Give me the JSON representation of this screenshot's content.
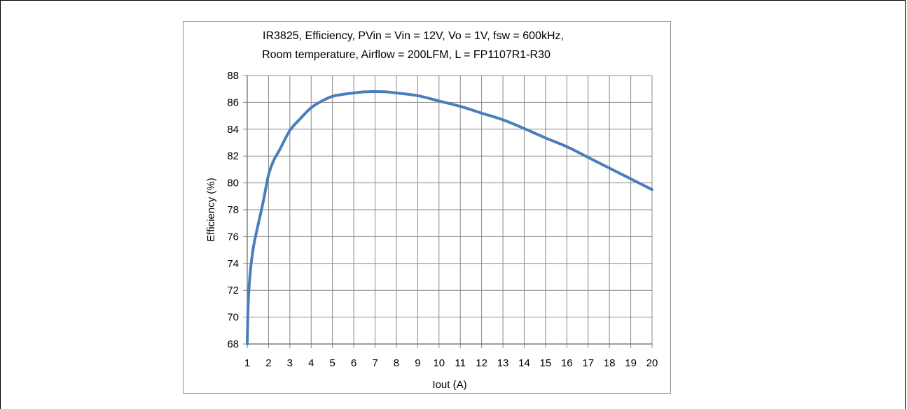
{
  "chart_data": {
    "type": "line",
    "title_lines": [
      "IR3825, Efficiency,  PVin = Vin = 12V, Vo = 1V, fsw = 600kHz,",
      "Room temperature, Airflow = 200LFM, L = FP1107R1-R30"
    ],
    "xlabel": "Iout (A)",
    "ylabel": "Efficiency  (%)",
    "xlim": [
      1,
      20
    ],
    "ylim": [
      68,
      88
    ],
    "xticks": [
      "1",
      "2",
      "3",
      "4",
      "5",
      "6",
      "7",
      "8",
      "9",
      "10",
      "11",
      "12",
      "13",
      "14",
      "15",
      "16",
      "17",
      "18",
      "19",
      "20"
    ],
    "yticks": [
      "68",
      "70",
      "72",
      "74",
      "76",
      "78",
      "80",
      "82",
      "84",
      "86",
      "88"
    ],
    "grid": true,
    "series": [
      {
        "color": "#4a7ebb",
        "x": [
          1,
          1.05,
          1.15,
          1.3,
          1.5,
          1.75,
          2,
          2.25,
          2.5,
          3,
          3.5,
          4,
          4.5,
          5,
          5.5,
          6,
          6.5,
          7,
          7.5,
          8,
          9,
          10,
          11,
          12,
          13,
          14,
          15,
          16,
          17,
          18,
          19,
          20
        ],
        "y": [
          68,
          71.2,
          73.5,
          75.3,
          76.8,
          78.6,
          80.6,
          81.7,
          82.4,
          83.9,
          84.8,
          85.6,
          86.1,
          86.45,
          86.6,
          86.7,
          86.78,
          86.8,
          86.78,
          86.7,
          86.5,
          86.1,
          85.7,
          85.2,
          84.7,
          84.05,
          83.35,
          82.7,
          81.9,
          81.1,
          80.3,
          79.5
        ]
      }
    ]
  }
}
